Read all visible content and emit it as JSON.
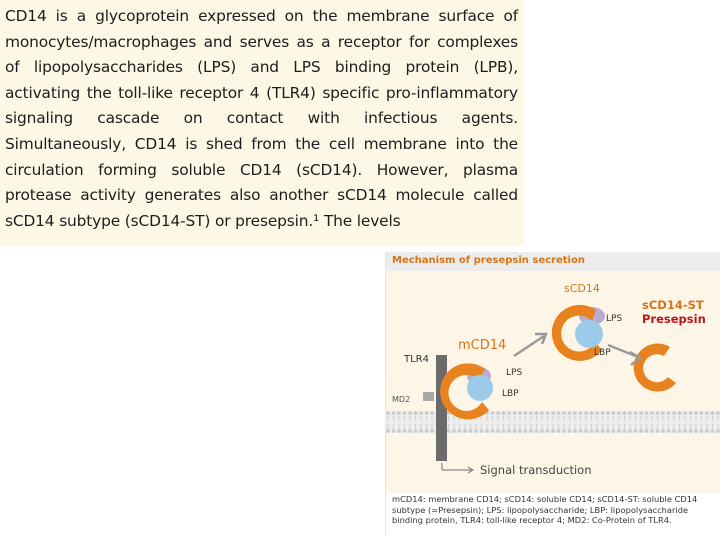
{
  "paragraph": "CD14 is a glycoprotein expressed on the membrane surface of monocytes/macrophages and serves as a receptor for complexes of lipopolysaccharides (LPS) and LPS binding protein (LPB), activating the toll-like receptor 4 (TLR4) specific pro-inflammatory signaling cascade on contact with infectious agents. Simultaneously, CD14 is shed from the cell membrane into the circulation forming soluble CD14 (sCD14). However, plasma protease activity generates also another sCD14 molecule called sCD14 subtype (sCD14-ST) or presepsin.¹ The levels",
  "figure": {
    "title": "Mechanism of presepsin secretion",
    "labels": {
      "mcd14": "mCD14",
      "tlr4": "TLR4",
      "md2": "MD2",
      "lps_left": "LPS",
      "lbp_left": "LBP",
      "scd14": "sCD14",
      "lps_mid": "LPS",
      "lbp_mid": "LBP",
      "scd14_st": "sCD14-ST",
      "presepsin": "Presepsin",
      "signal": "Signal transduction"
    },
    "legend": "mCD14: membrane CD14; sCD14: soluble CD14; sCD14-ST: soluble CD14 subtype (=Presepsin); LPS: lipopolysaccharide; LBP: lipopolysaccharide binding protein, TLR4: toll-like receptor 4; MD2: Co-Protein of TLR4.",
    "colors": {
      "orange": "#e8821e",
      "lps": "#b7acd3",
      "lbp": "#9ccbea",
      "membrane": "#c9c9c9",
      "tlr4": "#6b6b6b",
      "presepsin_red": "#b8161b"
    }
  }
}
